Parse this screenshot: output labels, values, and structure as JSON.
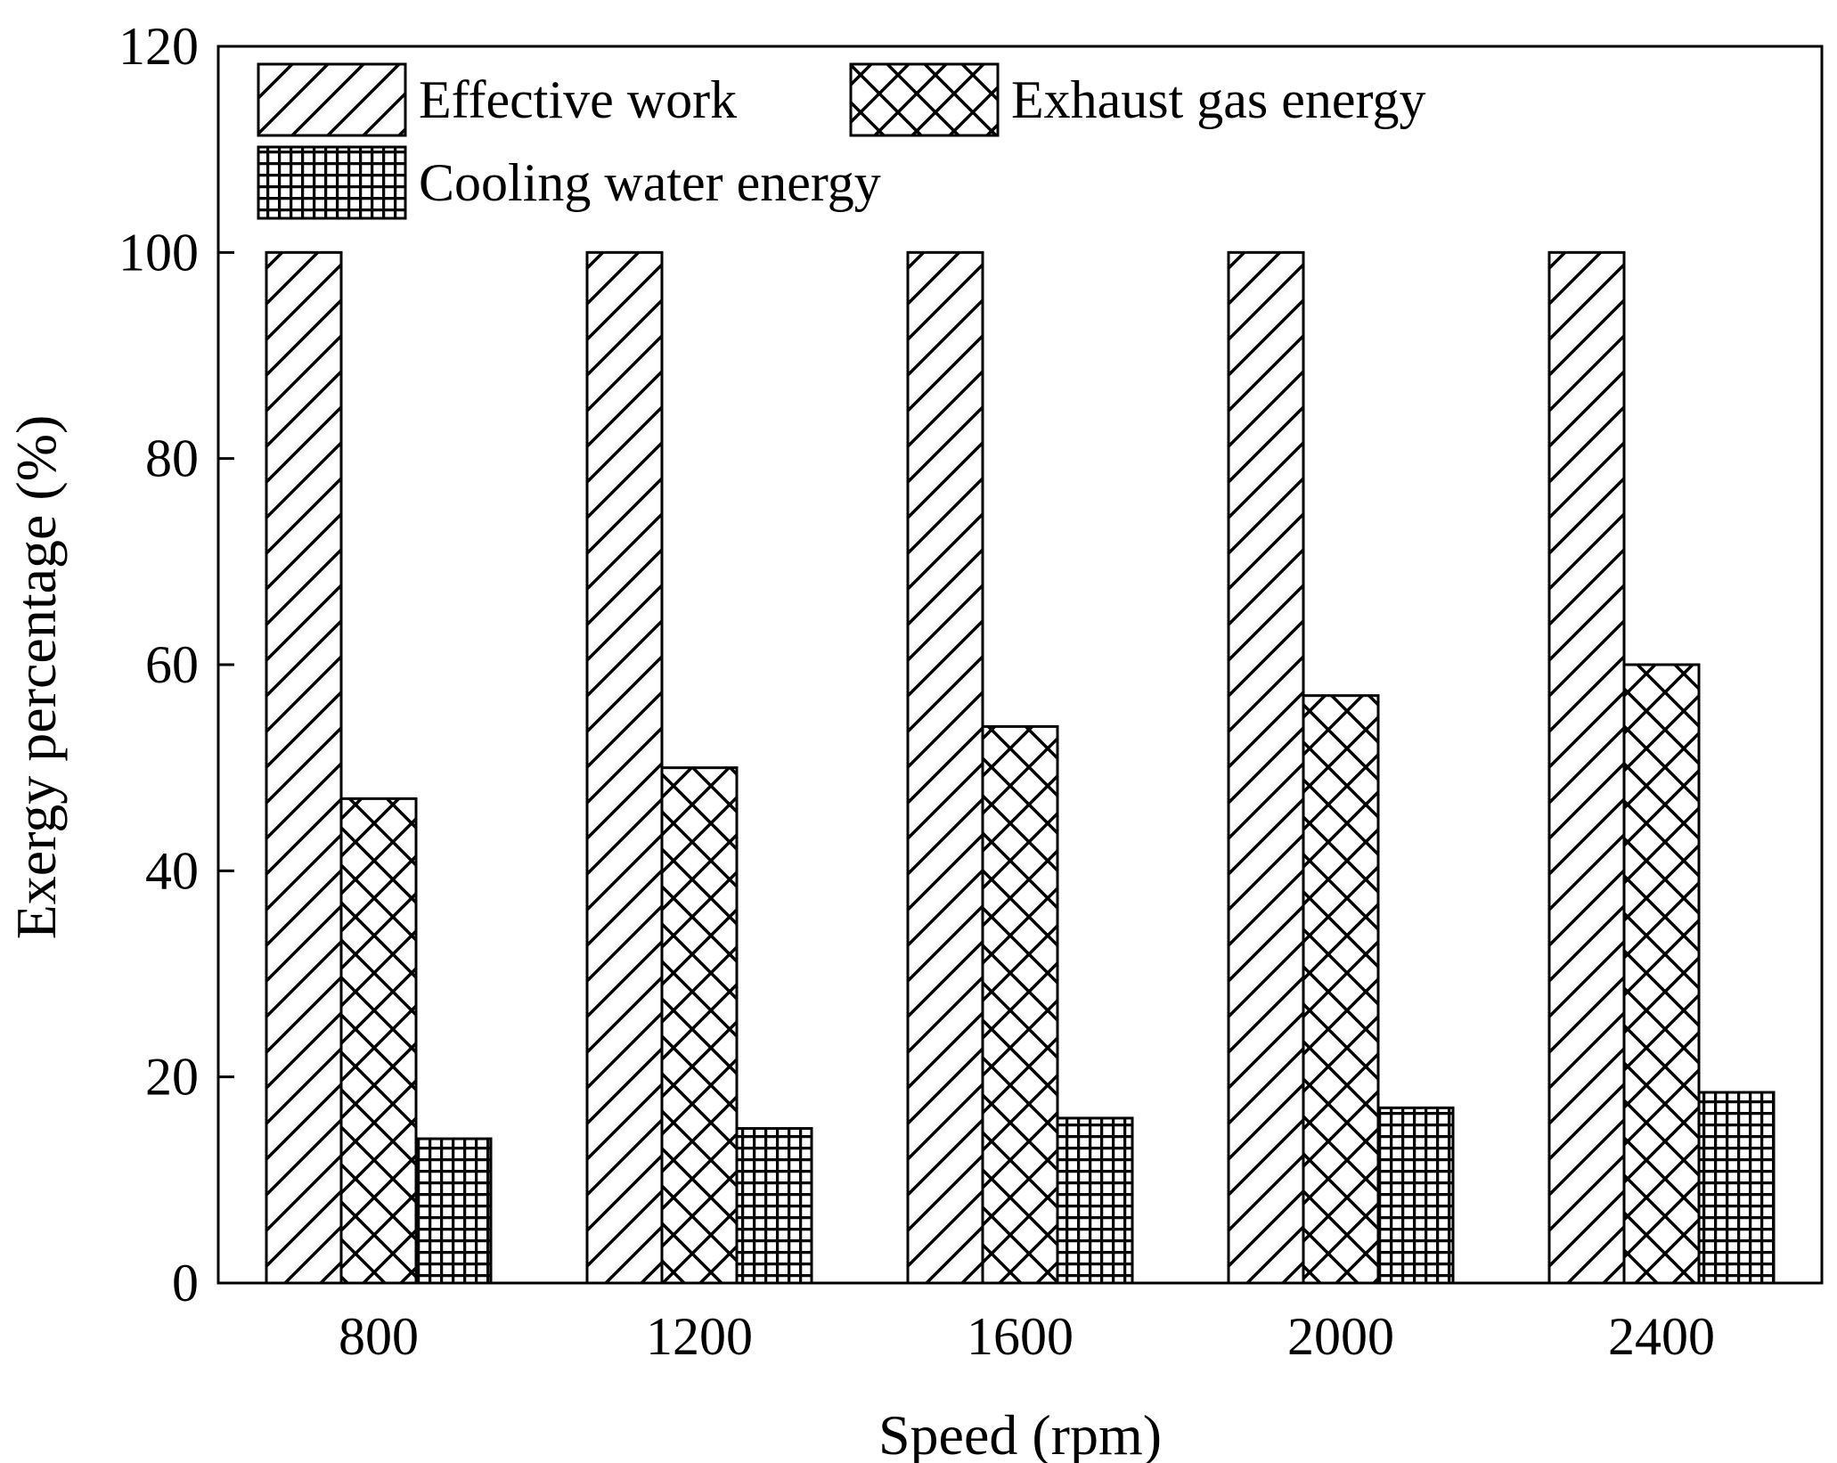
{
  "chart_data": {
    "type": "bar",
    "title": "",
    "xlabel": "Speed (rpm)",
    "ylabel": "Exergy percentage (%)",
    "ylim": [
      0,
      120
    ],
    "yticks": [
      0,
      20,
      40,
      60,
      80,
      100,
      120
    ],
    "yticks_text": [
      "0",
      "20",
      "40",
      "60",
      "80",
      "100",
      "120"
    ],
    "categories": [
      "800",
      "1200",
      "1600",
      "2000",
      "2400"
    ],
    "series": [
      {
        "name": "Effective work",
        "pattern": "diagonal-hatch",
        "values": [
          100,
          100,
          100,
          100,
          100
        ]
      },
      {
        "name": "Exhaust gas energy",
        "pattern": "crosshatch",
        "values": [
          47,
          50,
          54,
          57,
          60
        ]
      },
      {
        "name": "Cooling water energy",
        "pattern": "grid",
        "values": [
          14,
          15,
          16,
          17,
          18.5
        ]
      }
    ],
    "legend_position": "top-left",
    "grid": false,
    "colors": {
      "stroke": "#000000",
      "fill": "#ffffff"
    }
  }
}
